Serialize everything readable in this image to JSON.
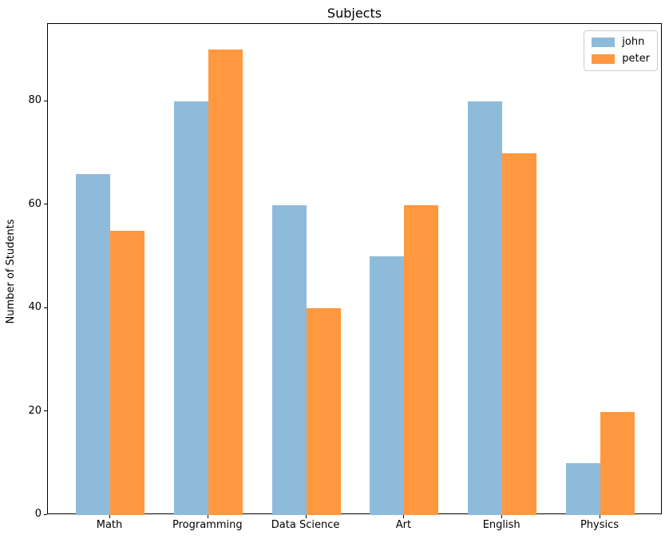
{
  "chart_data": {
    "type": "bar",
    "title": "Subjects",
    "xlabel": "",
    "ylabel": "Number of Students",
    "categories": [
      "Math",
      "Programming",
      "Data Science",
      "Art",
      "English",
      "Physics"
    ],
    "series": [
      {
        "name": "john",
        "color": "#8FBBDA",
        "values": [
          66,
          80,
          60,
          50,
          80,
          10
        ]
      },
      {
        "name": "peter",
        "color": "#FF983E",
        "values": [
          55,
          90,
          40,
          60,
          70,
          20
        ]
      }
    ],
    "ylim": [
      0,
      95
    ],
    "yticks": [
      0,
      20,
      40,
      60,
      80
    ],
    "bar_width": 0.35,
    "legend_position": "upper right",
    "grid": false,
    "colors": {
      "axis": "#000000",
      "legend_border": "#cccccc",
      "background": "#ffffff"
    }
  }
}
